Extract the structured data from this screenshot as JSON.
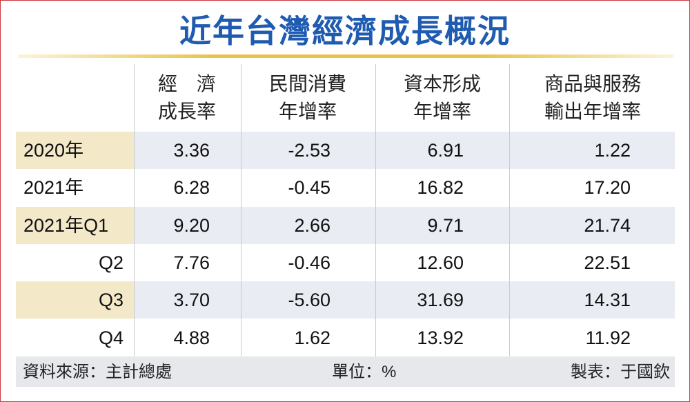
{
  "title": "近年台灣經濟成長概況",
  "table": {
    "headers": [
      [
        "經　濟",
        "成長率"
      ],
      [
        "民間消費",
        "年增率"
      ],
      [
        "資本形成",
        "年增率"
      ],
      [
        "商品與服務",
        "輸出年增率"
      ]
    ],
    "rows": [
      [
        "2020年",
        "3.36",
        "-2.53",
        "6.91",
        "1.22"
      ],
      [
        "2021年",
        "6.28",
        "-0.45",
        "16.82",
        "17.20"
      ],
      [
        "2021年Q1",
        "9.20",
        "2.66",
        "9.71",
        "21.74"
      ],
      [
        "Q2",
        "7.76",
        "-0.46",
        "12.60",
        "22.51"
      ],
      [
        "Q3",
        "3.70",
        "-5.60",
        "31.69",
        "14.31"
      ],
      [
        "Q4",
        "4.88",
        "1.62",
        "13.92",
        "11.92"
      ]
    ]
  },
  "footer": {
    "source": "資料來源：主計總處",
    "unit": "單位：%",
    "author": "製表：于國欽"
  }
}
